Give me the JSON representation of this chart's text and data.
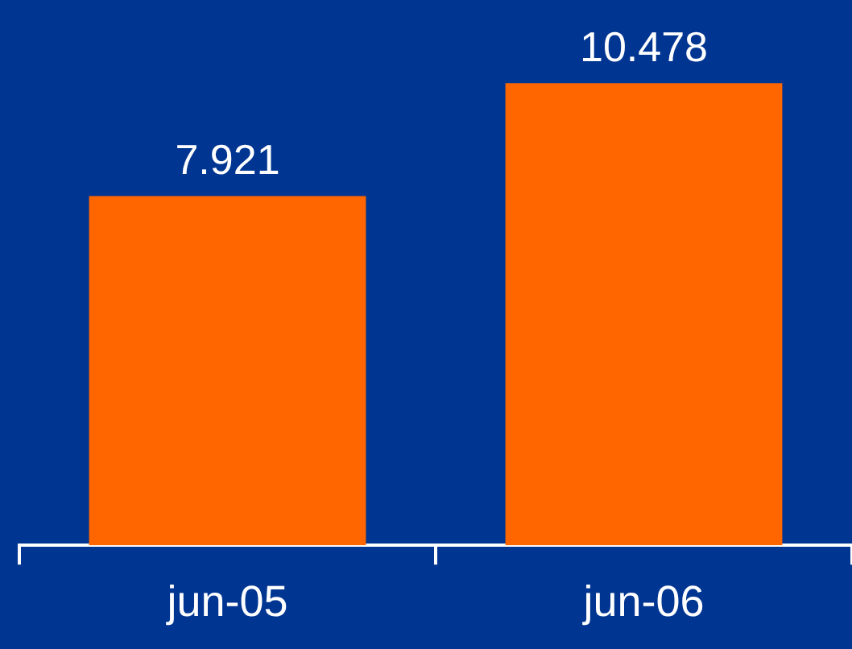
{
  "chart_data": {
    "type": "bar",
    "categories": [
      "jun-05",
      "jun-06"
    ],
    "values": [
      7.921,
      10.478
    ],
    "color": "#ff6600",
    "data_labels": true,
    "grid": false,
    "legend": false
  }
}
